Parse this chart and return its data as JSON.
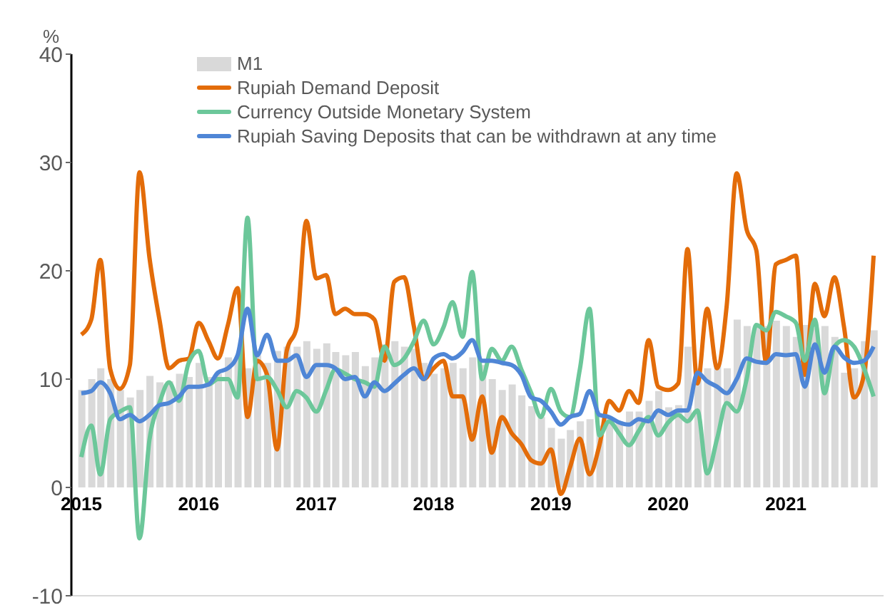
{
  "chart_data": {
    "type": "line",
    "ylabel": "%",
    "x": [
      "2015-01",
      "2015-02",
      "2015-03",
      "2015-04",
      "2015-05",
      "2015-06",
      "2015-07",
      "2015-08",
      "2015-09",
      "2015-10",
      "2015-11",
      "2015-12",
      "2016-01",
      "2016-02",
      "2016-03",
      "2016-04",
      "2016-05",
      "2016-06",
      "2016-07",
      "2016-08",
      "2016-09",
      "2016-10",
      "2016-11",
      "2016-12",
      "2017-01",
      "2017-02",
      "2017-03",
      "2017-04",
      "2017-05",
      "2017-06",
      "2017-07",
      "2017-08",
      "2017-09",
      "2017-10",
      "2017-11",
      "2017-12",
      "2018-01",
      "2018-02",
      "2018-03",
      "2018-04",
      "2018-05",
      "2018-06",
      "2018-07",
      "2018-08",
      "2018-09",
      "2018-10",
      "2018-11",
      "2018-12",
      "2019-01",
      "2019-02",
      "2019-03",
      "2019-04",
      "2019-05",
      "2019-06",
      "2019-07",
      "2019-08",
      "2019-09",
      "2019-10",
      "2019-11",
      "2019-12",
      "2020-01",
      "2020-02",
      "2020-03",
      "2020-04",
      "2020-05",
      "2020-06",
      "2020-07",
      "2020-08",
      "2020-09",
      "2020-10",
      "2020-11",
      "2020-12",
      "2021-01",
      "2021-02",
      "2021-03",
      "2021-04",
      "2021-05",
      "2021-06",
      "2021-07",
      "2021-08",
      "2021-09",
      "2021-10"
    ],
    "series": [
      {
        "name": "M1",
        "type": "bar",
        "color": "#d9d9d9",
        "values": [
          9,
          10,
          11,
          10,
          9,
          8.3,
          9,
          10.3,
          9.7,
          9.8,
          10.5,
          10.2,
          11.5,
          10.2,
          10.5,
          12,
          12,
          11,
          12.2,
          11.5,
          12.6,
          13,
          13,
          13.5,
          12.8,
          13.3,
          12.5,
          12.2,
          12.5,
          11.2,
          12,
          13.2,
          13.5,
          13,
          12.8,
          11.5,
          10.5,
          11,
          11.5,
          11,
          12,
          11.3,
          10,
          9,
          9.5,
          8.5,
          7.5,
          6.5,
          5.5,
          4.5,
          5.3,
          6.1,
          6.3,
          5.7,
          6.5,
          6.1,
          7,
          7,
          8,
          8.9,
          7.4,
          7.6,
          13,
          11,
          11,
          11.5,
          11,
          15.5,
          14.9,
          14.9,
          14.9,
          15.4,
          14.9,
          13.9,
          15,
          14.7,
          14.9,
          13.9,
          10.6,
          11,
          13.5,
          14.5
        ]
      },
      {
        "name": "Rupiah Demand Deposit",
        "color": "#e36c09",
        "values": [
          14.1,
          15.5,
          21,
          10.9,
          9.1,
          11.3,
          29.1,
          21.2,
          15.5,
          11,
          11.7,
          11.9,
          15.2,
          13.5,
          11.9,
          15,
          18.4,
          6.5,
          11.7,
          10.4,
          3.5,
          12.6,
          14.8,
          24.6,
          19.3,
          19.6,
          16,
          16.5,
          16,
          16,
          15.5,
          11.7,
          19,
          19.4,
          14.8,
          10,
          11,
          11.7,
          8.4,
          8.4,
          4.4,
          8.4,
          3.2,
          6.5,
          5,
          4,
          2.5,
          2.2,
          3.5,
          -0.6,
          1.8,
          4.5,
          1.2,
          3.9,
          8,
          7.1,
          8.9,
          7.8,
          13.6,
          9.3,
          9,
          9.6,
          22,
          9.6,
          16.5,
          11,
          16.8,
          29,
          23.8,
          21.9,
          11.5,
          20.6,
          21,
          21.4,
          10.4,
          18.8,
          15.8,
          19.4,
          14.8,
          8.3,
          10.4,
          21.4
        ]
      },
      {
        "name": "Currency Outside Monetary System",
        "color": "#6cc79a",
        "values": [
          2.8,
          5.7,
          1.2,
          6.3,
          7,
          7.4,
          -4.7,
          4.4,
          7.8,
          9.7,
          8,
          11.5,
          12.6,
          9.5,
          10,
          10,
          8.3,
          24.9,
          10,
          10.2,
          9,
          7.4,
          8.9,
          8.3,
          7,
          9,
          10.9,
          10.5,
          10,
          9.7,
          9.3,
          13,
          11.3,
          11.9,
          13.5,
          15.4,
          13.2,
          14.8,
          17.1,
          13.9,
          19.9,
          10,
          12.8,
          11.7,
          13,
          10.9,
          8.7,
          6.5,
          9.1,
          7,
          6.5,
          10.9,
          16.5,
          4.8,
          6.1,
          5,
          3.9,
          5.2,
          6.5,
          4.8,
          6,
          6.7,
          6.1,
          7.1,
          1.3,
          4.5,
          7.8,
          7,
          10,
          15,
          14.5,
          16.2,
          15.8,
          15.2,
          11.7,
          15.5,
          8.7,
          13,
          13.6,
          13,
          11,
          8.4
        ]
      },
      {
        "name": "Rupiah Saving Deposits that can be withdrawn at any time",
        "color": "#4f86d6",
        "values": [
          8.7,
          8.9,
          9.7,
          8.7,
          6.3,
          6.7,
          6.1,
          6.7,
          7.6,
          7.8,
          8.4,
          9.3,
          9.3,
          9.5,
          10.6,
          11,
          12.2,
          16.5,
          12.2,
          14.1,
          11.7,
          11.7,
          12.2,
          10.2,
          11.3,
          11.3,
          11,
          10,
          10.2,
          8.4,
          9.7,
          8.9,
          9.6,
          10.4,
          11,
          10,
          11.9,
          12.3,
          11.9,
          12.5,
          13.6,
          11.7,
          11.7,
          11.5,
          11.3,
          10.4,
          8.3,
          8,
          7,
          5.8,
          6.5,
          6.8,
          8.9,
          6.7,
          6.5,
          6,
          5.8,
          6.3,
          6.1,
          7.1,
          6.7,
          7.1,
          7.1,
          10.6,
          9.8,
          9.3,
          8.7,
          10,
          11.9,
          11.6,
          11.5,
          12.3,
          12.2,
          12.3,
          9.3,
          13.2,
          10.6,
          13,
          12,
          11.5,
          11.7,
          13
        ]
      }
    ],
    "xlim": [
      "2014-12",
      "2021-11"
    ],
    "xticks": [
      {
        "value": "2015-01",
        "label": "2015"
      },
      {
        "value": "2016-01",
        "label": "2016"
      },
      {
        "value": "2017-01",
        "label": "2017"
      },
      {
        "value": "2018-01",
        "label": "2018"
      },
      {
        "value": "2019-01",
        "label": "2019"
      },
      {
        "value": "2020-01",
        "label": "2020"
      },
      {
        "value": "2021-01",
        "label": "2021"
      }
    ],
    "ylim": [
      -10,
      40
    ],
    "yticks": [
      -10,
      0,
      10,
      20,
      30,
      40
    ],
    "grid": false,
    "legend": "top left"
  }
}
